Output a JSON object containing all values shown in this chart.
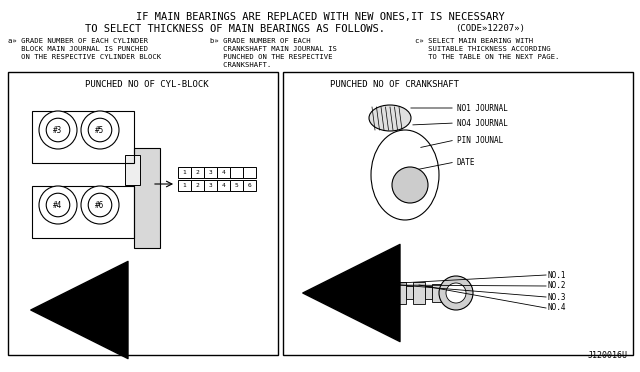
{
  "bg_color": "#ffffff",
  "border_color": "#000000",
  "text_color": "#000000",
  "title_line1": "IF MAIN BEARINGS ARE REPLACED WITH NEW ONES,IT IS NECESSARY",
  "title_line2": "TO SELECT THICKNESS OF MAIN BEARINGS AS FOLLOWS.",
  "code_text": "(CODE»12207»)",
  "left_panel_title": "PUNCHED NO OF CYL-BLOCK",
  "right_panel_title": "PUNCHED NO OF CRANKSHAFT",
  "code_ref": "J120016U",
  "font_family": "monospace"
}
